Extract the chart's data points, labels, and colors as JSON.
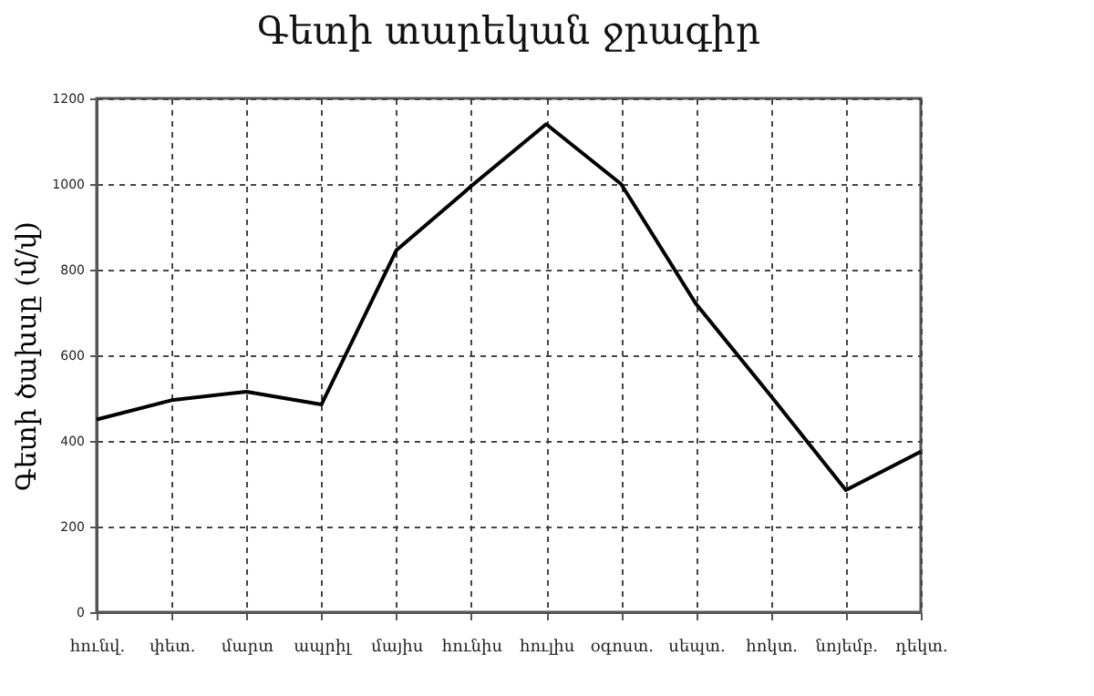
{
  "chart_data": {
    "type": "line",
    "title": "Գետի տարեկան ջրագիր",
    "ylabel": "Գետի ծախսը (մ/վ)",
    "categories": [
      "հունվ.",
      "փետ.",
      "մարտ",
      "ապրիլ",
      "մայիս",
      "հունիս",
      "հուլիս",
      "օգոստ.",
      "սեպտ.",
      "հոկտ.",
      "նոյեմբ.",
      "դեկտ."
    ],
    "series": [
      {
        "color": "#000000",
        "values": [
          450,
          495,
          515,
          485,
          845,
          995,
          1140,
          1000,
          720,
          505,
          285,
          375
        ]
      }
    ],
    "ylim": [
      0,
      1200
    ],
    "yticks": [
      0,
      200,
      400,
      600,
      800,
      1000,
      1200
    ],
    "grid": true,
    "legend": false,
    "marker": "none",
    "line_style": "solid"
  }
}
